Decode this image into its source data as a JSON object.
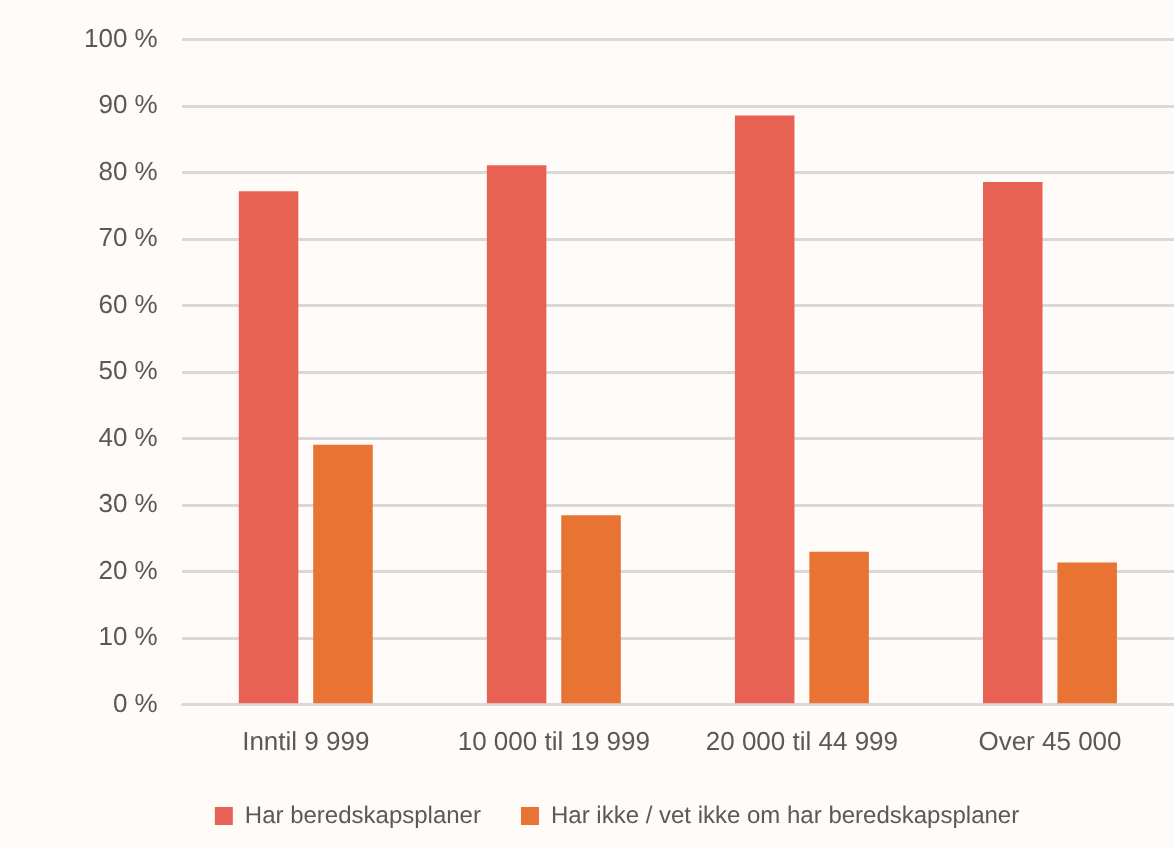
{
  "chart_data": {
    "type": "bar",
    "categories": [
      "Inntil 9 999",
      "10 000 til 19 999",
      "20 000 til 44 999",
      "Over 45 000"
    ],
    "series": [
      {
        "name": "Har beredskapsplaner",
        "color": "#e86253",
        "values": [
          77.2,
          81.1,
          88.6,
          78.6
        ]
      },
      {
        "name": "Har ikke / vet ikke om har beredskapsplaner",
        "color": "#e87332",
        "values": [
          39.1,
          28.5,
          23.0,
          21.4
        ]
      }
    ],
    "ylim": [
      0,
      100
    ],
    "yticks": [
      {
        "value": 0,
        "label": "0 %"
      },
      {
        "value": 10,
        "label": "10 %"
      },
      {
        "value": 20,
        "label": "20 %"
      },
      {
        "value": 30,
        "label": "30 %"
      },
      {
        "value": 40,
        "label": "40 %"
      },
      {
        "value": 50,
        "label": "50 %"
      },
      {
        "value": 60,
        "label": "60 %"
      },
      {
        "value": 70,
        "label": "70 %"
      },
      {
        "value": 80,
        "label": "80 %"
      },
      {
        "value": 90,
        "label": "90 %"
      },
      {
        "value": 100,
        "label": "100 %"
      }
    ],
    "grid": "y",
    "legend": "bottom"
  }
}
